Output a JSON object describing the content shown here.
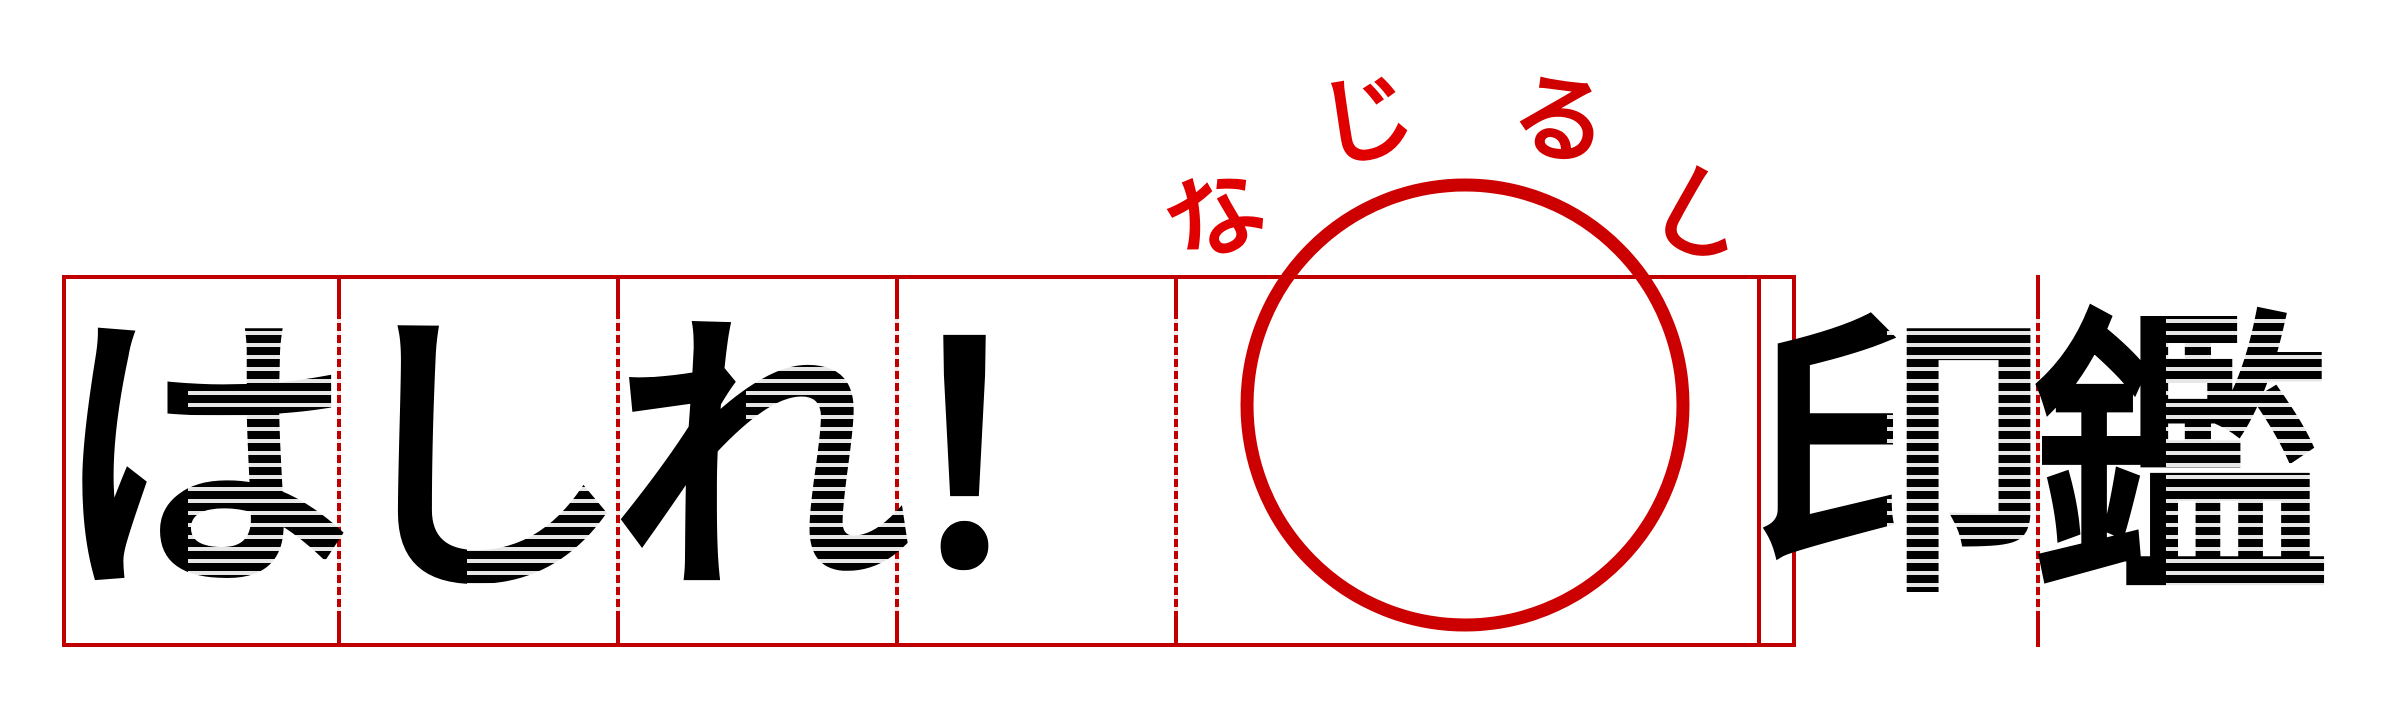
{
  "logo": {
    "ruby_chars": [
      "な",
      "じ",
      "る",
      "し"
    ],
    "title_before": [
      "は",
      "し",
      "れ",
      "！"
    ],
    "mark": "〇",
    "title_after": [
      "印",
      "鑑"
    ]
  },
  "colors": {
    "rule": "#c00000",
    "circle": "#cc0000",
    "ruby_light": "#e00000",
    "ruby_dark": "#6a0000",
    "glyph": "#000000"
  }
}
